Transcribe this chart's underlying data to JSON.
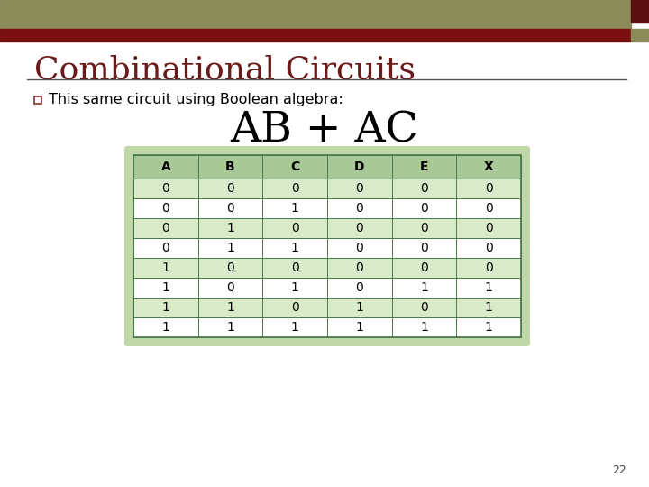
{
  "title": "Combinational Circuits",
  "title_color": "#6B1A1A",
  "bullet_text": "This same circuit using Boolean algebra:",
  "formula": "AB + AC",
  "header_bar_olive": "#8B8B5A",
  "header_bar_red": "#7A1010",
  "header_corner_dark": "#5A1010",
  "header_corner_olive": "#8B8B5A",
  "table_headers": [
    "A",
    "B",
    "C",
    "D",
    "E",
    "X"
  ],
  "table_data": [
    [
      0,
      0,
      0,
      0,
      0,
      0
    ],
    [
      0,
      0,
      1,
      0,
      0,
      0
    ],
    [
      0,
      1,
      0,
      0,
      0,
      0
    ],
    [
      0,
      1,
      1,
      0,
      0,
      0
    ],
    [
      1,
      0,
      0,
      0,
      0,
      0
    ],
    [
      1,
      0,
      1,
      0,
      1,
      1
    ],
    [
      1,
      1,
      0,
      1,
      0,
      1
    ],
    [
      1,
      1,
      1,
      1,
      1,
      1
    ]
  ],
  "table_header_bg": "#A8C898",
  "table_row_bg_odd": "#FFFFFF",
  "table_row_bg_even": "#D8EAC8",
  "table_border_color": "#4A7A4A",
  "table_outer_bg": "#C0D8A8",
  "background_color": "#FFFFFF",
  "slide_number": "22",
  "bullet_symbol_color": "#8B3030",
  "title_line_color": "#555555"
}
